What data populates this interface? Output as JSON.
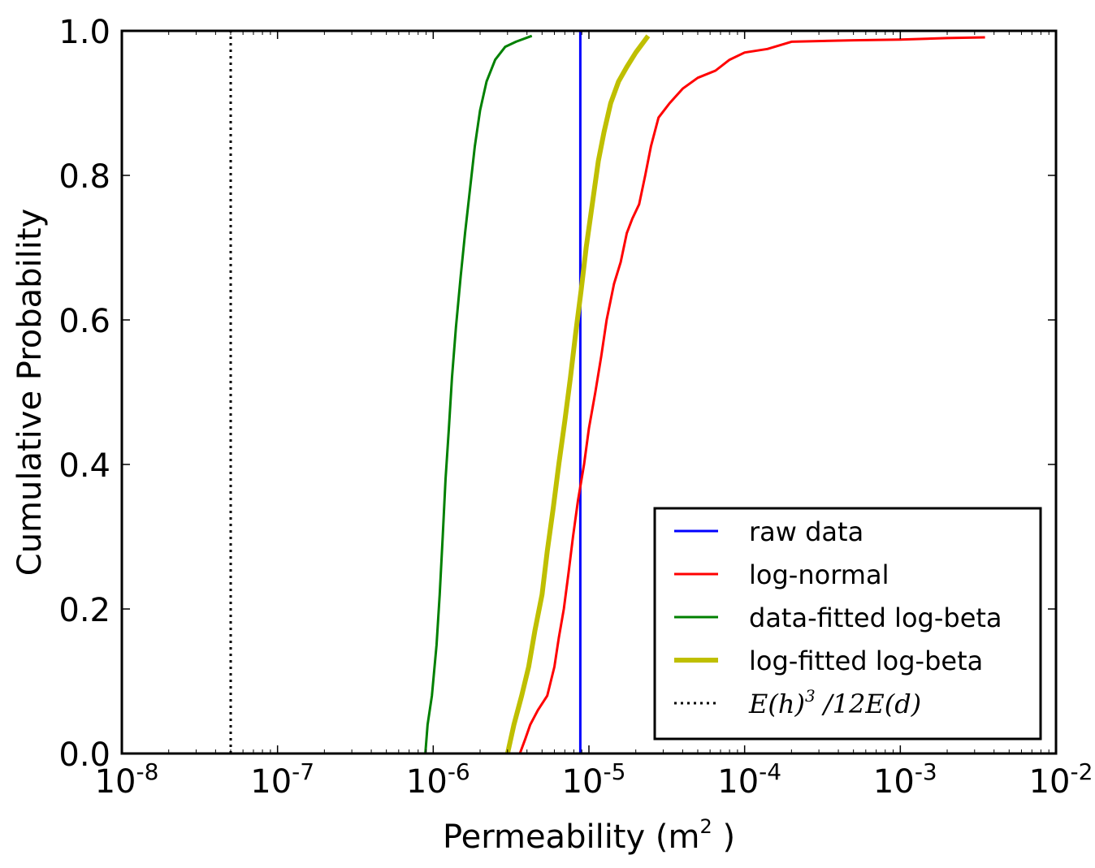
{
  "chart_data": {
    "type": "line",
    "title": "",
    "xlabel": "Permeability (m",
    "xlabel_sup": "2",
    "xlabel_close": " )",
    "ylabel": "Cumulative Probability",
    "xscale": "log",
    "xlim_exp": [
      -8,
      -2
    ],
    "ylim": [
      0.0,
      1.0
    ],
    "x_ticks": [
      {
        "base": "10",
        "exp": "-8",
        "value": 1e-08
      },
      {
        "base": "10",
        "exp": "-7",
        "value": 1e-07
      },
      {
        "base": "10",
        "exp": "-6",
        "value": 1e-06
      },
      {
        "base": "10",
        "exp": "-5",
        "value": 1e-05
      },
      {
        "base": "10",
        "exp": "-4",
        "value": 0.0001
      },
      {
        "base": "10",
        "exp": "-3",
        "value": 0.001
      },
      {
        "base": "10",
        "exp": "-2",
        "value": 0.01
      }
    ],
    "y_ticks": [
      {
        "label": "0.0",
        "value": 0.0
      },
      {
        "label": "0.2",
        "value": 0.2
      },
      {
        "label": "0.4",
        "value": 0.4
      },
      {
        "label": "0.6",
        "value": 0.6
      },
      {
        "label": "0.8",
        "value": 0.8
      },
      {
        "label": "1.0",
        "value": 1.0
      }
    ],
    "legend_position": "lower-right",
    "series": [
      {
        "name": "raw data",
        "color": "#0000ff",
        "style": "solid",
        "width": 3,
        "x": [
          8.8e-06,
          8.8e-06
        ],
        "y": [
          0.0,
          1.0
        ]
      },
      {
        "name": "log-normal",
        "color": "#ff0000",
        "style": "solid",
        "width": 3,
        "x": [
          3.6e-06,
          3.9e-06,
          4.2e-06,
          4.7e-06,
          5.4e-06,
          6e-06,
          6.4e-06,
          6.9e-06,
          7.4e-06,
          7.9e-06,
          8.5e-06,
          9.3e-06,
          1e-05,
          1.1e-05,
          1.2e-05,
          1.3e-05,
          1.45e-05,
          1.6e-05,
          1.75e-05,
          1.9e-05,
          2.1e-05,
          2.3e-05,
          2.5e-05,
          2.8e-05,
          3.3e-05,
          4e-05,
          5e-05,
          6.5e-05,
          8e-05,
          0.0001,
          0.00014,
          0.0002,
          0.0005,
          0.001,
          0.002,
          0.0035
        ],
        "y": [
          0.0,
          0.02,
          0.04,
          0.06,
          0.08,
          0.12,
          0.16,
          0.2,
          0.25,
          0.3,
          0.35,
          0.4,
          0.45,
          0.5,
          0.55,
          0.6,
          0.65,
          0.68,
          0.72,
          0.74,
          0.76,
          0.8,
          0.84,
          0.88,
          0.9,
          0.92,
          0.935,
          0.945,
          0.96,
          0.97,
          0.975,
          0.985,
          0.987,
          0.988,
          0.99,
          0.991
        ]
      },
      {
        "name": "data-fitted log-beta",
        "color": "#008000",
        "style": "solid",
        "width": 3,
        "x": [
          8.9e-07,
          9.2e-07,
          9.8e-07,
          1.05e-06,
          1.1e-06,
          1.15e-06,
          1.2e-06,
          1.26e-06,
          1.32e-06,
          1.4e-06,
          1.5e-06,
          1.6e-06,
          1.72e-06,
          1.85e-06,
          2e-06,
          2.2e-06,
          2.5e-06,
          2.9e-06,
          3.4e-06,
          4.3e-06
        ],
        "y": [
          0.0,
          0.04,
          0.08,
          0.15,
          0.22,
          0.3,
          0.38,
          0.45,
          0.52,
          0.59,
          0.66,
          0.72,
          0.78,
          0.84,
          0.89,
          0.93,
          0.96,
          0.978,
          0.985,
          0.993
        ]
      },
      {
        "name": "log-fitted log-beta",
        "color": "#bfbf00",
        "style": "solid",
        "width": 6,
        "x": [
          3e-06,
          3.3e-06,
          3.7e-06,
          4.1e-06,
          4.5e-06,
          5e-06,
          5.4e-06,
          5.9e-06,
          6.4e-06,
          7e-06,
          7.6e-06,
          8.2e-06,
          8.9e-06,
          9.6e-06,
          1.05e-05,
          1.15e-05,
          1.25e-05,
          1.38e-05,
          1.55e-05,
          1.75e-05,
          2e-05,
          2.4e-05
        ],
        "y": [
          0.0,
          0.04,
          0.08,
          0.12,
          0.17,
          0.22,
          0.28,
          0.34,
          0.4,
          0.46,
          0.52,
          0.58,
          0.64,
          0.7,
          0.76,
          0.82,
          0.86,
          0.9,
          0.93,
          0.95,
          0.97,
          0.993
        ]
      },
      {
        "name": "E(h)^3 / 12E(d)",
        "label_math": "E(h)",
        "label_sup": "3",
        "label_rest": " /12E(d)",
        "color": "#000000",
        "style": "dotted",
        "width": 3,
        "x": [
          5e-08,
          5e-08
        ],
        "y": [
          0.0,
          1.0
        ]
      }
    ]
  }
}
